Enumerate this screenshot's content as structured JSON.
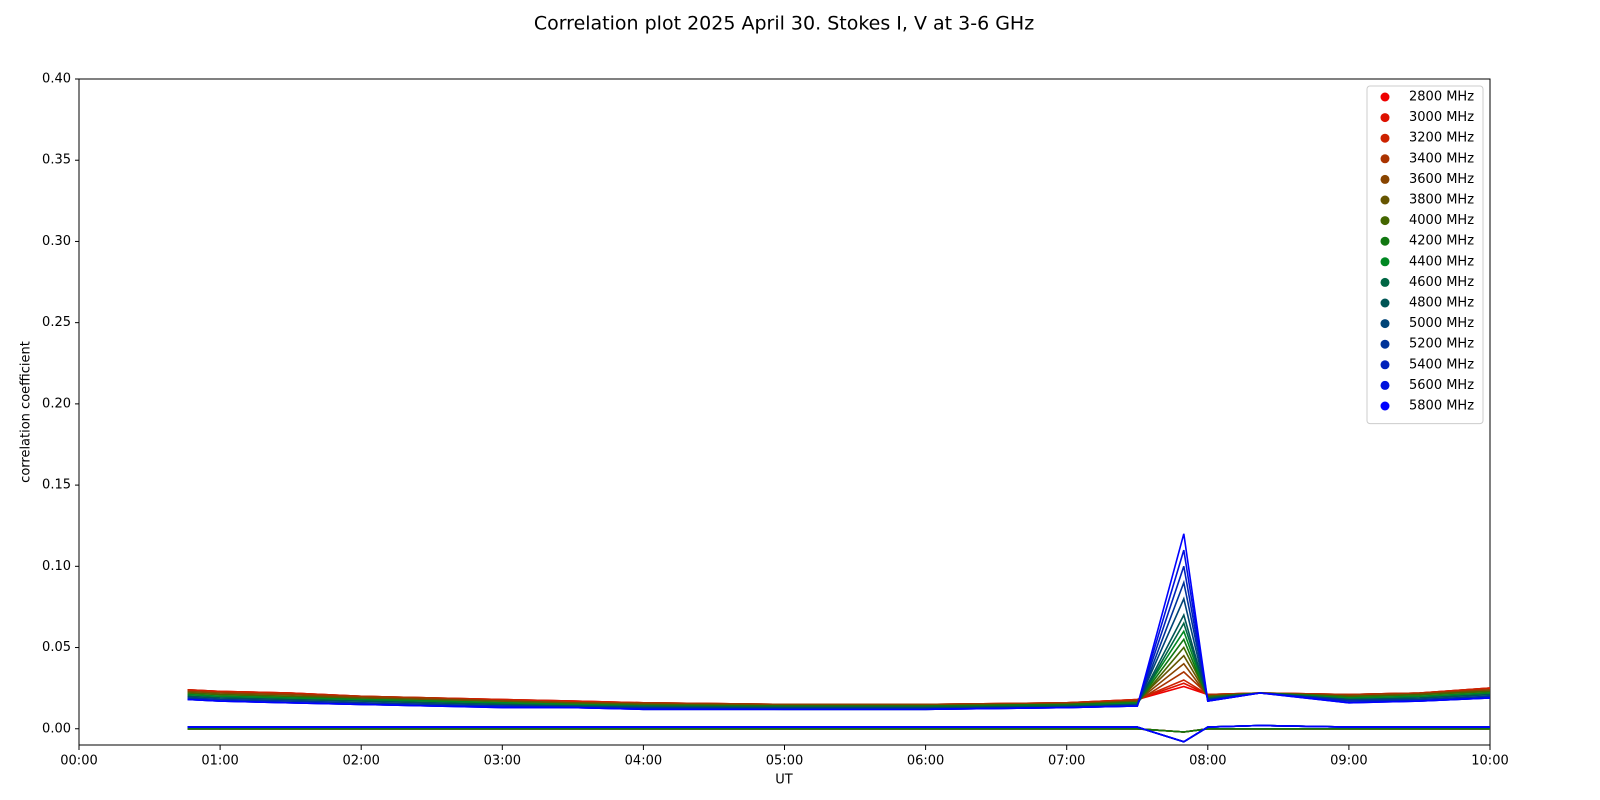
{
  "chart_data": {
    "type": "scatter",
    "title": "Correlation plot 2025 April 30. Stokes I, V at 3-6 GHz",
    "x_label": "UT",
    "y_label": "correlation coefficient",
    "xlim": [
      0,
      10
    ],
    "ylim": [
      -0.01,
      0.4
    ],
    "xticks": [
      {
        "value": 0,
        "label": "00:00"
      },
      {
        "value": 1,
        "label": "01:00"
      },
      {
        "value": 2,
        "label": "02:00"
      },
      {
        "value": 3,
        "label": "03:00"
      },
      {
        "value": 4,
        "label": "04:00"
      },
      {
        "value": 5,
        "label": "05:00"
      },
      {
        "value": 6,
        "label": "06:00"
      },
      {
        "value": 7,
        "label": "07:00"
      },
      {
        "value": 8,
        "label": "08:00"
      },
      {
        "value": 9,
        "label": "09:00"
      },
      {
        "value": 10,
        "label": "10:00"
      }
    ],
    "yticks": [
      {
        "value": 0,
        "label": "0.00"
      },
      {
        "value": 0.05,
        "label": "0.05"
      },
      {
        "value": 0.1,
        "label": "0.10"
      },
      {
        "value": 0.15,
        "label": "0.15"
      },
      {
        "value": 0.2,
        "label": "0.20"
      },
      {
        "value": 0.25,
        "label": "0.25"
      },
      {
        "value": 0.3,
        "label": "0.30"
      },
      {
        "value": 0.35,
        "label": "0.35"
      },
      {
        "value": 0.4,
        "label": "0.40"
      }
    ],
    "legend": "upper right",
    "x": [
      0.77,
      1.0,
      1.5,
      2.0,
      2.5,
      3.0,
      3.5,
      4.0,
      5.0,
      6.0,
      7.0,
      7.5,
      7.83,
      8.0,
      8.37,
      9.0,
      9.5,
      10.0
    ],
    "series": [
      {
        "name": "2800 MHz",
        "color": "#ee0000",
        "values": [
          0.024,
          0.023,
          0.022,
          0.02,
          0.019,
          0.018,
          0.017,
          0.016,
          0.015,
          0.015,
          0.016,
          0.018,
          0.026,
          0.021,
          0.022,
          0.021,
          0.022,
          0.025
        ],
        "stokes_v": [
          0,
          0,
          0,
          0,
          0,
          0,
          0,
          0,
          0,
          0,
          0,
          0,
          -0.002,
          0,
          0,
          0,
          0,
          0
        ]
      },
      {
        "name": "3000 MHz",
        "color": "#dd1100",
        "values": [
          0.024,
          0.023,
          0.022,
          0.02,
          0.019,
          0.018,
          0.017,
          0.016,
          0.015,
          0.015,
          0.016,
          0.018,
          0.028,
          0.021,
          0.022,
          0.021,
          0.022,
          0.025
        ],
        "stokes_v": [
          0,
          0,
          0,
          0,
          0,
          0,
          0,
          0,
          0,
          0,
          0,
          0,
          -0.002,
          0,
          0,
          0,
          0,
          0
        ]
      },
      {
        "name": "3200 MHz",
        "color": "#cc2200",
        "values": [
          0.024,
          0.023,
          0.022,
          0.02,
          0.019,
          0.018,
          0.017,
          0.016,
          0.015,
          0.015,
          0.016,
          0.018,
          0.03,
          0.021,
          0.022,
          0.021,
          0.022,
          0.025
        ],
        "stokes_v": [
          0,
          0,
          0,
          0,
          0,
          0,
          0,
          0,
          0,
          0,
          0,
          0,
          -0.002,
          0,
          0,
          0,
          0,
          0
        ]
      },
      {
        "name": "3400 MHz",
        "color": "#aa3300",
        "values": [
          0.023,
          0.022,
          0.021,
          0.02,
          0.019,
          0.017,
          0.016,
          0.016,
          0.015,
          0.015,
          0.016,
          0.017,
          0.035,
          0.021,
          0.022,
          0.021,
          0.022,
          0.024
        ],
        "stokes_v": [
          0,
          0,
          0,
          0,
          0,
          0,
          0,
          0,
          0,
          0,
          0,
          0,
          -0.002,
          0,
          0,
          0,
          0,
          0
        ]
      },
      {
        "name": "3600 MHz",
        "color": "#884400",
        "values": [
          0.023,
          0.022,
          0.021,
          0.019,
          0.018,
          0.017,
          0.016,
          0.015,
          0.015,
          0.015,
          0.015,
          0.017,
          0.04,
          0.02,
          0.022,
          0.02,
          0.021,
          0.024
        ],
        "stokes_v": [
          0,
          0,
          0,
          0,
          0,
          0,
          0,
          0,
          0,
          0,
          0,
          0,
          -0.002,
          0,
          0,
          0,
          0,
          0
        ]
      },
      {
        "name": "3800 MHz",
        "color": "#665500",
        "values": [
          0.022,
          0.021,
          0.02,
          0.019,
          0.018,
          0.017,
          0.016,
          0.015,
          0.014,
          0.014,
          0.015,
          0.017,
          0.045,
          0.02,
          0.022,
          0.02,
          0.021,
          0.023
        ],
        "stokes_v": [
          0,
          0,
          0,
          0,
          0,
          0,
          0,
          0,
          0,
          0,
          0,
          0,
          -0.002,
          0,
          0,
          0,
          0,
          0
        ]
      },
      {
        "name": "4000 MHz",
        "color": "#446600",
        "values": [
          0.022,
          0.021,
          0.02,
          0.018,
          0.017,
          0.016,
          0.015,
          0.015,
          0.014,
          0.014,
          0.015,
          0.016,
          0.05,
          0.02,
          0.022,
          0.02,
          0.021,
          0.023
        ],
        "stokes_v": [
          0,
          0,
          0,
          0,
          0,
          0,
          0,
          0,
          0,
          0,
          0,
          0,
          -0.002,
          0,
          0,
          0,
          0,
          0
        ]
      },
      {
        "name": "4200 MHz",
        "color": "#117711",
        "values": [
          0.021,
          0.02,
          0.019,
          0.018,
          0.017,
          0.016,
          0.015,
          0.014,
          0.014,
          0.014,
          0.015,
          0.016,
          0.055,
          0.019,
          0.022,
          0.019,
          0.02,
          0.022
        ],
        "stokes_v": [
          0,
          0,
          0,
          0,
          0,
          0,
          0,
          0,
          0,
          0,
          0,
          0,
          -0.002,
          0,
          0,
          0,
          0,
          0
        ]
      },
      {
        "name": "4400 MHz",
        "color": "#008822",
        "values": [
          0.021,
          0.02,
          0.019,
          0.018,
          0.017,
          0.016,
          0.015,
          0.014,
          0.013,
          0.013,
          0.014,
          0.016,
          0.06,
          0.019,
          0.022,
          0.019,
          0.02,
          0.022
        ],
        "stokes_v": [
          0.001,
          0.001,
          0.001,
          0.001,
          0.001,
          0.001,
          0.001,
          0.001,
          0.001,
          0.001,
          0.001,
          0.001,
          -0.008,
          0.001,
          0.002,
          0.001,
          0.001,
          0.001
        ]
      },
      {
        "name": "4600 MHz",
        "color": "#006644",
        "values": [
          0.02,
          0.019,
          0.018,
          0.017,
          0.016,
          0.015,
          0.014,
          0.014,
          0.013,
          0.013,
          0.014,
          0.015,
          0.065,
          0.019,
          0.022,
          0.018,
          0.019,
          0.021
        ],
        "stokes_v": [
          0.001,
          0.001,
          0.001,
          0.001,
          0.001,
          0.001,
          0.001,
          0.001,
          0.001,
          0.001,
          0.001,
          0.001,
          -0.008,
          0.001,
          0.002,
          0.001,
          0.001,
          0.001
        ]
      },
      {
        "name": "4800 MHz",
        "color": "#005555",
        "values": [
          0.02,
          0.019,
          0.018,
          0.017,
          0.016,
          0.015,
          0.014,
          0.013,
          0.013,
          0.013,
          0.014,
          0.015,
          0.07,
          0.018,
          0.022,
          0.018,
          0.019,
          0.021
        ],
        "stokes_v": [
          0.001,
          0.001,
          0.001,
          0.001,
          0.001,
          0.001,
          0.001,
          0.001,
          0.001,
          0.001,
          0.001,
          0.001,
          -0.008,
          0.001,
          0.002,
          0.001,
          0.001,
          0.001
        ]
      },
      {
        "name": "5000 MHz",
        "color": "#004477",
        "values": [
          0.019,
          0.018,
          0.017,
          0.016,
          0.015,
          0.014,
          0.014,
          0.013,
          0.013,
          0.013,
          0.013,
          0.015,
          0.08,
          0.018,
          0.022,
          0.018,
          0.018,
          0.02
        ],
        "stokes_v": [
          0.001,
          0.001,
          0.001,
          0.001,
          0.001,
          0.001,
          0.001,
          0.001,
          0.001,
          0.001,
          0.001,
          0.001,
          -0.008,
          0.001,
          0.002,
          0.001,
          0.001,
          0.001
        ]
      },
      {
        "name": "5200 MHz",
        "color": "#003399",
        "values": [
          0.019,
          0.018,
          0.017,
          0.016,
          0.015,
          0.014,
          0.013,
          0.013,
          0.012,
          0.012,
          0.013,
          0.014,
          0.09,
          0.018,
          0.022,
          0.017,
          0.018,
          0.02
        ],
        "stokes_v": [
          0.001,
          0.001,
          0.001,
          0.001,
          0.001,
          0.001,
          0.001,
          0.001,
          0.001,
          0.001,
          0.001,
          0.001,
          -0.008,
          0.001,
          0.002,
          0.001,
          0.001,
          0.001
        ]
      },
      {
        "name": "5400 MHz",
        "color": "#0022bb",
        "values": [
          0.018,
          0.017,
          0.016,
          0.015,
          0.014,
          0.014,
          0.013,
          0.012,
          0.012,
          0.012,
          0.013,
          0.014,
          0.1,
          0.017,
          0.022,
          0.017,
          0.017,
          0.019
        ],
        "stokes_v": [
          0.001,
          0.001,
          0.001,
          0.001,
          0.001,
          0.001,
          0.001,
          0.001,
          0.001,
          0.001,
          0.001,
          0.001,
          -0.008,
          0.001,
          0.002,
          0.001,
          0.001,
          0.001
        ]
      },
      {
        "name": "5600 MHz",
        "color": "#0011dd",
        "values": [
          0.018,
          0.017,
          0.016,
          0.015,
          0.014,
          0.013,
          0.013,
          0.012,
          0.012,
          0.012,
          0.013,
          0.014,
          0.11,
          0.017,
          0.022,
          0.016,
          0.017,
          0.019
        ],
        "stokes_v": [
          0.001,
          0.001,
          0.001,
          0.001,
          0.001,
          0.001,
          0.001,
          0.001,
          0.001,
          0.001,
          0.001,
          0.001,
          -0.008,
          0.001,
          0.002,
          0.001,
          0.001,
          0.001
        ]
      },
      {
        "name": "5800 MHz",
        "color": "#0000ff",
        "values": [
          0.018,
          0.017,
          0.016,
          0.015,
          0.014,
          0.013,
          0.013,
          0.012,
          0.012,
          0.012,
          0.013,
          0.014,
          0.12,
          0.017,
          0.022,
          0.016,
          0.017,
          0.019
        ],
        "stokes_v": [
          0.001,
          0.001,
          0.001,
          0.001,
          0.001,
          0.001,
          0.001,
          0.001,
          0.001,
          0.001,
          0.001,
          0.001,
          -0.008,
          0.001,
          0.002,
          0.001,
          0.001,
          0.001
        ]
      }
    ]
  }
}
